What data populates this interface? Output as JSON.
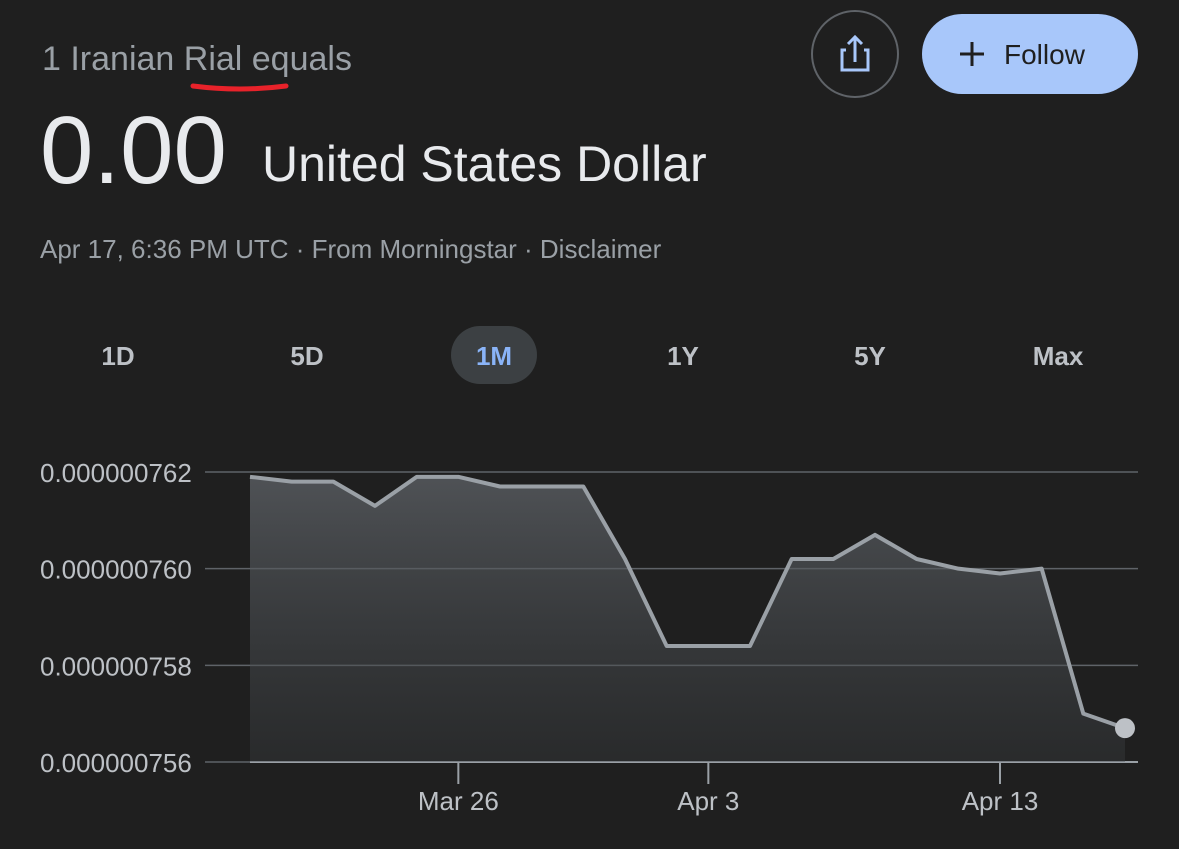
{
  "header": {
    "title": "1 Iranian Rial equals",
    "value": "0.00",
    "unit": "United States Dollar",
    "meta": "Apr 17, 6:36 PM UTC · From Morningstar · Disclaimer",
    "follow": "Follow"
  },
  "tabs": {
    "items": [
      "1D",
      "5D",
      "1M",
      "1Y",
      "5Y",
      "Max"
    ],
    "selected": 2
  },
  "chart_data": {
    "type": "line",
    "categories": [
      null,
      null,
      null,
      null,
      null,
      "Mar 26",
      null,
      null,
      null,
      null,
      null,
      "Apr 3",
      null,
      null,
      null,
      null,
      null,
      null,
      "Apr 13",
      null,
      null,
      null
    ],
    "series": [
      {
        "color": "#9aa0a6",
        "values": [
          7.619e-07,
          7.618e-07,
          7.618e-07,
          7.613e-07,
          7.619e-07,
          7.619e-07,
          7.617e-07,
          7.617e-07,
          7.617e-07,
          7.602e-07,
          7.584e-07,
          7.584e-07,
          7.584e-07,
          7.602e-07,
          7.602e-07,
          7.607e-07,
          7.602e-07,
          7.6e-07,
          7.599e-07,
          7.6e-07,
          7.57e-07,
          7.567e-07
        ]
      }
    ],
    "ylim": [
      7.56e-07,
      7.62e-07
    ],
    "yticks": [
      {
        "value": 7.56e-07,
        "label": "0.000000756"
      },
      {
        "value": 7.58e-07,
        "label": "0.000000758"
      },
      {
        "value": 7.6e-07,
        "label": "0.000000760"
      },
      {
        "value": 7.62e-07,
        "label": "0.000000762"
      }
    ],
    "grid": true
  }
}
